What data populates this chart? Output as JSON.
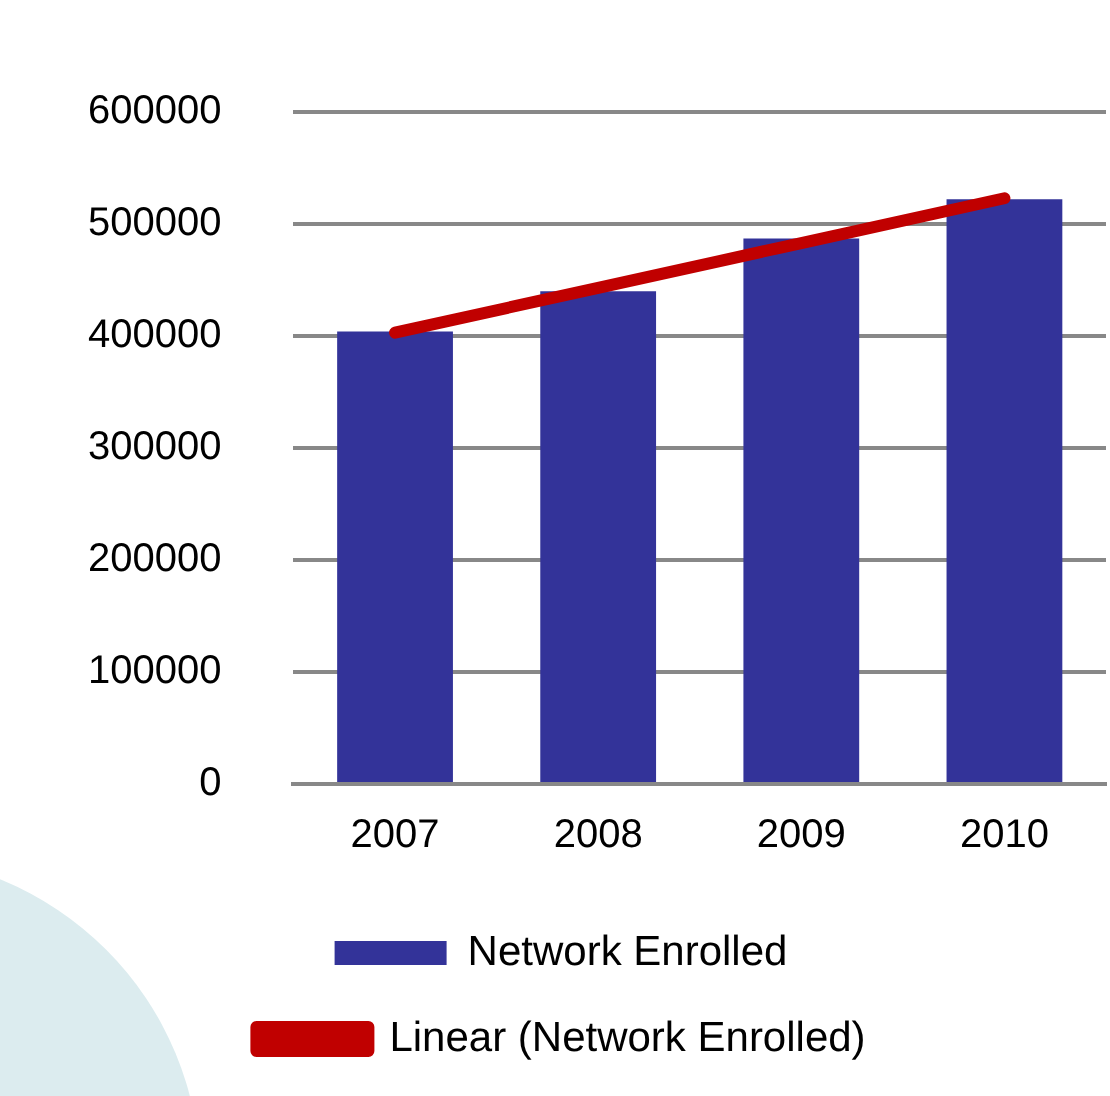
{
  "chart_data": {
    "type": "bar",
    "categories": [
      "2007",
      "2008",
      "2009",
      "2010"
    ],
    "series": [
      {
        "name": "Network Enrolled",
        "color": "#333399",
        "values": [
          404000,
          440000,
          487000,
          522000
        ]
      },
      {
        "name": "Linear (Network Enrolled)",
        "type": "line",
        "color": "#c00000",
        "values": [
          403000,
          443000,
          483000,
          523000
        ]
      }
    ],
    "ylim": [
      0,
      600000
    ],
    "yticks": [
      0,
      100000,
      200000,
      300000,
      400000,
      500000,
      600000
    ],
    "grid": "y",
    "legend": "bottom",
    "marker": "none"
  }
}
